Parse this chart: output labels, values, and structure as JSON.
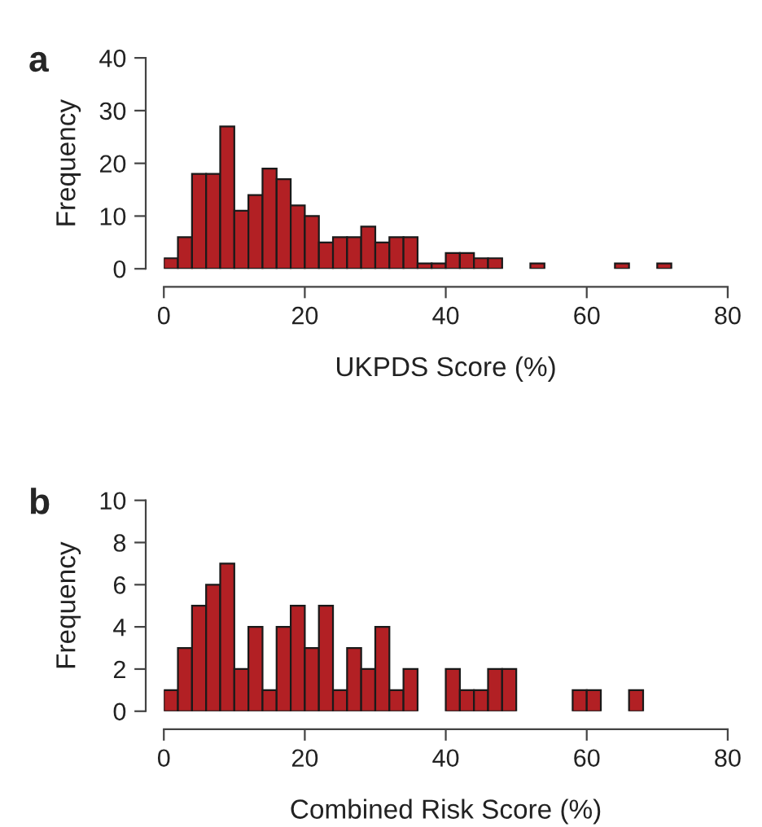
{
  "chart_data": [
    {
      "type": "histogram",
      "title": "a",
      "xlabel": "UKPDS Score (%)",
      "ylabel": "Frequency",
      "color": "#b22024",
      "bins": [
        0,
        2,
        4,
        6,
        8,
        10,
        12,
        14,
        16,
        18,
        20,
        22,
        24,
        26,
        28,
        30,
        32,
        34,
        36,
        38,
        40,
        42,
        44,
        46,
        48,
        50,
        52,
        54,
        56,
        58,
        60,
        62,
        64,
        66,
        68,
        70,
        72
      ],
      "values": [
        2,
        6,
        18,
        18,
        27,
        11,
        14,
        19,
        17,
        12,
        10,
        5,
        6,
        6,
        8,
        5,
        6,
        6,
        1,
        1,
        3,
        3,
        2,
        2,
        0,
        0,
        1,
        0,
        0,
        0,
        0,
        0,
        1,
        0,
        0,
        1
      ],
      "xlim": [
        0,
        80
      ],
      "xticks": [
        0,
        20,
        40,
        60,
        80
      ],
      "ylim": [
        0,
        40
      ],
      "yticks": [
        0,
        10,
        20,
        30,
        40
      ],
      "grid": false
    },
    {
      "type": "histogram",
      "title": "b",
      "xlabel": "Combined Risk Score (%)",
      "ylabel": "Frequency",
      "color": "#b22024",
      "bins": [
        0,
        2,
        4,
        6,
        8,
        10,
        12,
        14,
        16,
        18,
        20,
        22,
        24,
        26,
        28,
        30,
        32,
        34,
        36,
        38,
        40,
        42,
        44,
        46,
        48,
        50,
        52,
        54,
        56,
        58,
        60,
        62,
        64,
        66,
        68
      ],
      "values": [
        1,
        3,
        5,
        6,
        7,
        2,
        4,
        1,
        4,
        5,
        3,
        5,
        1,
        3,
        2,
        4,
        1,
        2,
        0,
        0,
        2,
        1,
        1,
        2,
        2,
        0,
        0,
        0,
        0,
        1,
        1,
        0,
        0,
        1
      ],
      "xlim": [
        0,
        80
      ],
      "xticks": [
        0,
        20,
        40,
        60,
        80
      ],
      "ylim": [
        0,
        10
      ],
      "yticks": [
        0,
        2,
        4,
        6,
        8,
        10
      ],
      "grid": false
    }
  ]
}
